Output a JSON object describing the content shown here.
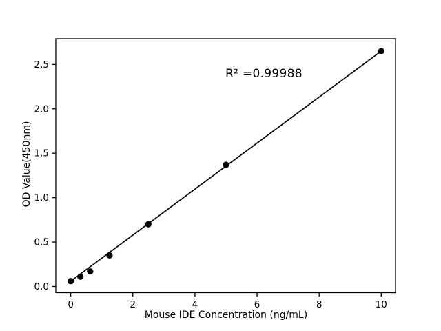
{
  "figure": {
    "background": "#ffffff"
  },
  "chart_data": {
    "type": "scatter",
    "title": "",
    "xlabel": "Mouse IDE Concentration (ng/mL)",
    "ylabel": "OD Value(450nm)",
    "annotation": "R² =0.99988",
    "x": [
      0,
      0.3125,
      0.625,
      1.25,
      2.5,
      5,
      10
    ],
    "y": [
      0.06,
      0.11,
      0.17,
      0.35,
      0.7,
      1.37,
      2.65
    ],
    "fit_line": {
      "x1": 0,
      "y1": 0.06,
      "x2": 10,
      "y2": 2.65
    },
    "xticks": {
      "values": [
        0,
        2,
        4,
        6,
        8,
        10
      ],
      "labels": [
        "0",
        "2",
        "4",
        "6",
        "8",
        "10"
      ]
    },
    "yticks": {
      "values": [
        0,
        0.5,
        1.0,
        1.5,
        2.0,
        2.5
      ],
      "labels": [
        "0.0",
        "0.5",
        "1.0",
        "1.5",
        "2.0",
        "2.5"
      ]
    },
    "xlim": [
      -0.48,
      10.46
    ],
    "ylim": [
      -0.07,
      2.79
    ],
    "grid": false,
    "legend": null,
    "colors": {
      "marker": "#000000",
      "line": "#000000",
      "frame": "#000000",
      "background": "#ffffff"
    }
  }
}
